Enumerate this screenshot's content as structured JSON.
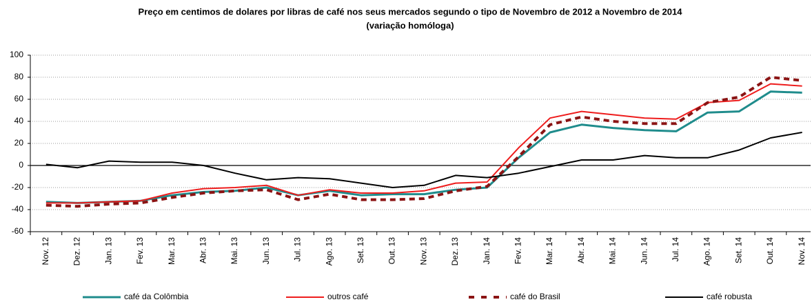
{
  "chart_data": {
    "type": "line",
    "title": "Preço em centimos de dolares por libras de café nos seus mercados segundo o tipo de Novembro de 2012 a Novembro de 2014",
    "subtitle": "(variação homóloga)",
    "categories": [
      "Nov. 12",
      "Dez. 12",
      "Jan. 13",
      "Fev. 13",
      "Mar. 13",
      "Abr. 13",
      "Mai. 13",
      "Jun. 13",
      "Jul. 13",
      "Ago. 13",
      "Set. 13",
      "Out. 13",
      "Nov. 13",
      "Dez. 13",
      "Jan. 14",
      "Fev. 14",
      "Mar. 14",
      "Abr. 14",
      "Mai. 14",
      "Jun. 14",
      "Jul. 14",
      "Ago. 14",
      "Set. 14",
      "Out. 14",
      "Nov. 14"
    ],
    "series": [
      {
        "name": "café da Colômbia",
        "color": "#1f8c8c",
        "width": 3,
        "dash": false,
        "values": [
          -33,
          -34,
          -33,
          -32,
          -27,
          -24,
          -23,
          -20,
          -27,
          -23,
          -27,
          -26,
          -26,
          -22,
          -20,
          7,
          30,
          37,
          34,
          32,
          31,
          48,
          49,
          67,
          66
        ]
      },
      {
        "name": "outros café",
        "color": "#ee1c1c",
        "width": 2,
        "dash": false,
        "values": [
          -34,
          -34,
          -33,
          -32,
          -25,
          -21,
          -20,
          -18,
          -27,
          -22,
          -25,
          -25,
          -23,
          -16,
          -15,
          16,
          43,
          49,
          46,
          43,
          42,
          57,
          59,
          74,
          72
        ]
      },
      {
        "name": "café do Brasil",
        "color": "#8b1414",
        "width": 4,
        "dash": true,
        "values": [
          -36,
          -37,
          -35,
          -34,
          -29,
          -25,
          -23,
          -22,
          -31,
          -26,
          -31,
          -31,
          -30,
          -23,
          -19,
          8,
          37,
          44,
          40,
          38,
          38,
          57,
          62,
          80,
          77
        ]
      },
      {
        "name": "café robusta",
        "color": "#000000",
        "width": 2,
        "dash": false,
        "values": [
          1,
          -2,
          4,
          3,
          3,
          0,
          -7,
          -13,
          -11,
          -12,
          -16,
          -20,
          -18,
          -9,
          -11,
          -7,
          -1,
          5,
          5,
          9,
          7,
          7,
          14,
          25,
          30
        ]
      }
    ],
    "ylim": [
      -60,
      100
    ],
    "yticks": [
      -60,
      -40,
      -20,
      0,
      20,
      40,
      60,
      80,
      100
    ],
    "grid": true,
    "legend": "bottom"
  }
}
